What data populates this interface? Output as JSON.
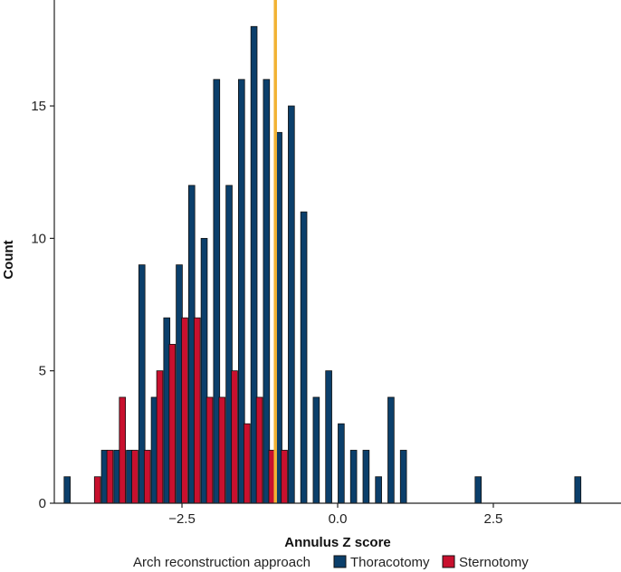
{
  "chart_data": {
    "type": "histogram",
    "xlabel": "Annulus Z score",
    "ylabel": "Count",
    "xlim": [
      -4.55,
      4.55
    ],
    "ylim": [
      0,
      19
    ],
    "x_ticks": [
      {
        "value": -2.5,
        "label": "−2.5"
      },
      {
        "value": 0.0,
        "label": "0.0"
      },
      {
        "value": 2.5,
        "label": "2.5"
      }
    ],
    "y_ticks": [
      {
        "value": 0,
        "label": "0"
      },
      {
        "value": 5,
        "label": "5"
      },
      {
        "value": 10,
        "label": "10"
      },
      {
        "value": 15,
        "label": "15"
      }
    ],
    "bin_width": 0.2,
    "reference_line": {
      "x": -1.0,
      "color": "#F2B233"
    },
    "series": [
      {
        "name": "Thoracotomy",
        "color": "#0B3F6B",
        "x": [
          -4.3,
          -3.7,
          -3.5,
          -3.3,
          -3.1,
          -2.9,
          -2.7,
          -2.5,
          -2.3,
          -2.1,
          -1.9,
          -1.7,
          -1.5,
          -1.3,
          -1.1,
          -0.9,
          -0.7,
          -0.5,
          -0.3,
          -0.1,
          0.1,
          0.3,
          0.5,
          0.7,
          0.9,
          1.1,
          2.3,
          3.9
        ],
        "values": [
          1,
          2,
          2,
          2,
          9,
          4,
          7,
          9,
          12,
          10,
          16,
          12,
          16,
          18,
          16,
          14,
          15,
          11,
          4,
          5,
          3,
          2,
          2,
          1,
          4,
          2,
          1,
          1
        ]
      },
      {
        "name": "Sternotomy",
        "color": "#C8102E",
        "x": [
          -3.9,
          -3.7,
          -3.5,
          -3.3,
          -3.1,
          -2.9,
          -2.7,
          -2.5,
          -2.3,
          -2.1,
          -1.9,
          -1.7,
          -1.5,
          -1.3,
          -1.1,
          -0.9
        ],
        "values": [
          1,
          2,
          4,
          2,
          2,
          5,
          6,
          7,
          7,
          4,
          4,
          5,
          3,
          4,
          2,
          2
        ]
      }
    ],
    "legend": {
      "title": "Arch reconstruction approach",
      "entries": [
        "Thoracotomy",
        "Sternotomy"
      ],
      "position": "bottom"
    }
  }
}
